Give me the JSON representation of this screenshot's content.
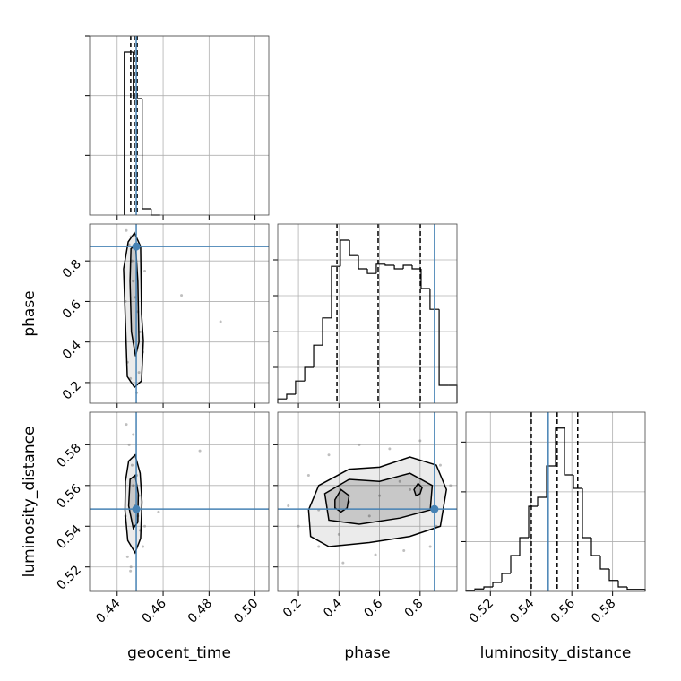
{
  "chart_data": [
    {
      "type": "histogram",
      "bins": [
        0.4431,
        0.447,
        0.4509,
        0.4548,
        0.4587
      ],
      "counts": [
        2730,
        1950,
        105,
        0
      ],
      "color": "#000000",
      "quantiles": [
        0.4459,
        0.4475,
        0.4487
      ],
      "truth": 0.4483,
      "truth_color": "#4682b4",
      "xlim": [
        0.428,
        0.506
      ],
      "xticks": [
        0.44,
        0.46,
        0.48,
        {
          "value": 0.5,
          "label": "0.50"
        }
      ],
      "xtick_labels": false,
      "ylim": [
        0,
        3000
      ],
      "yticks": [
        1000,
        2000,
        3000
      ],
      "ytick_labels": false,
      "grid": true
    },
    {
      "type": "scatter",
      "ylabel": "phase",
      "color": "#000000",
      "point_color": "#808080",
      "x": [
        0.444,
        0.4452,
        0.4465,
        0.447,
        0.4478,
        0.449,
        0.45,
        0.4512,
        0.4445,
        0.4458,
        0.4485,
        0.4495,
        0.4436,
        0.452,
        0.468,
        0.485,
        0.447,
        0.446
      ],
      "y": [
        0.95,
        0.88,
        0.8,
        0.7,
        0.62,
        0.55,
        0.45,
        0.35,
        0.3,
        0.22,
        0.15,
        0.25,
        0.6,
        0.75,
        0.63,
        0.5,
        0.4,
        0.92
      ],
      "contours": [
        {
          "x": [
            0.4448,
            0.4475,
            0.4502,
            0.4506,
            0.4514,
            0.4506,
            0.4475,
            0.4444,
            0.4436,
            0.4428
          ],
          "y": [
            0.894,
            0.938,
            0.872,
            0.54,
            0.407,
            0.208,
            0.177,
            0.23,
            0.496,
            0.761
          ]
        },
        {
          "x": [
            0.446,
            0.448,
            0.449,
            0.4495,
            0.448,
            0.4462,
            0.4456
          ],
          "y": [
            0.86,
            0.88,
            0.7,
            0.4,
            0.33,
            0.45,
            0.7
          ]
        }
      ],
      "truth": [
        0.4483,
        0.871
      ],
      "truth_color": "#4682b4",
      "xlim": [
        0.428,
        0.506
      ],
      "xticks": [
        0.44,
        0.46,
        0.48,
        {
          "value": 0.5,
          "label": "0.50"
        }
      ],
      "xtick_labels": false,
      "ylim": [
        0.098,
        0.982
      ],
      "yticks": [
        0.2,
        0.4,
        0.6,
        0.8
      ],
      "ytick_labels": true,
      "grid": true
    },
    {
      "type": "histogram",
      "bins": [
        0.098,
        0.142,
        0.186,
        0.231,
        0.275,
        0.319,
        0.363,
        0.407,
        0.452,
        0.496,
        0.54,
        0.584,
        0.628,
        0.673,
        0.717,
        0.761,
        0.805,
        0.849,
        0.894,
        0.938,
        0.982
      ],
      "counts": [
        12,
        25,
        62,
        100,
        162,
        238,
        382,
        455,
        412,
        375,
        362,
        388,
        385,
        375,
        385,
        375,
        320,
        262,
        50,
        50
      ],
      "color": "#000000",
      "quantiles": [
        0.39,
        0.593,
        0.801
      ],
      "truth": 0.871,
      "truth_color": "#4682b4",
      "xlim": [
        0.098,
        0.982
      ],
      "xticks": [
        0.2,
        0.4,
        0.6,
        0.8
      ],
      "xtick_labels": false,
      "ylim": [
        0,
        500
      ],
      "yticks": [
        100,
        200,
        300,
        400
      ],
      "ytick_labels": false,
      "grid": true
    },
    {
      "type": "scatter",
      "xlabel": "geocent_time",
      "ylabel": "luminosity_distance",
      "color": "#000000",
      "point_color": "#808080",
      "x": [
        0.444,
        0.4452,
        0.4465,
        0.447,
        0.4478,
        0.449,
        0.45,
        0.4512,
        0.4445,
        0.4458,
        0.4485,
        0.4495,
        0.4436,
        0.452,
        0.458,
        0.476,
        0.447,
        0.446
      ],
      "y": [
        0.59,
        0.58,
        0.57,
        0.56,
        0.55,
        0.545,
        0.538,
        0.53,
        0.525,
        0.518,
        0.565,
        0.555,
        0.545,
        0.54,
        0.547,
        0.577,
        0.585,
        0.52
      ],
      "contours": [
        {
          "x": [
            0.445,
            0.4478,
            0.45,
            0.4508,
            0.4502,
            0.4478,
            0.4446,
            0.4434,
            0.4436
          ],
          "y": [
            0.572,
            0.575,
            0.566,
            0.552,
            0.534,
            0.527,
            0.533,
            0.548,
            0.562
          ]
        },
        {
          "x": [
            0.4456,
            0.4478,
            0.4492,
            0.449,
            0.447,
            0.445
          ],
          "y": [
            0.563,
            0.565,
            0.556,
            0.542,
            0.539,
            0.55
          ]
        }
      ],
      "truth": [
        0.4483,
        0.5484
      ],
      "truth_color": "#4682b4",
      "xlim": [
        0.428,
        0.506
      ],
      "xticks": [
        0.44,
        0.46,
        0.48,
        {
          "value": 0.5,
          "label": "0.50"
        }
      ],
      "xtick_labels": true,
      "ylim": [
        0.508,
        0.596
      ],
      "yticks": [
        0.52,
        0.54,
        0.56,
        0.58
      ],
      "ytick_labels": true,
      "grid": true
    },
    {
      "type": "scatter",
      "xlabel": "phase",
      "color": "#000000",
      "point_color": "#808080",
      "x": [
        0.15,
        0.2,
        0.25,
        0.3,
        0.35,
        0.42,
        0.5,
        0.58,
        0.65,
        0.72,
        0.8,
        0.88,
        0.95,
        0.3,
        0.45,
        0.6,
        0.75,
        0.9,
        0.55,
        0.4,
        0.7,
        0.85
      ],
      "y": [
        0.55,
        0.54,
        0.565,
        0.53,
        0.575,
        0.522,
        0.58,
        0.526,
        0.578,
        0.528,
        0.582,
        0.54,
        0.56,
        0.548,
        0.552,
        0.555,
        0.558,
        0.57,
        0.545,
        0.536,
        0.562,
        0.53
      ],
      "contours": [
        {
          "x": [
            0.25,
            0.3,
            0.45,
            0.6,
            0.75,
            0.88,
            0.93,
            0.9,
            0.75,
            0.55,
            0.35,
            0.26
          ],
          "y": [
            0.548,
            0.56,
            0.568,
            0.569,
            0.574,
            0.57,
            0.558,
            0.54,
            0.535,
            0.532,
            0.53,
            0.535
          ]
        },
        {
          "x": [
            0.33,
            0.45,
            0.6,
            0.75,
            0.86,
            0.85,
            0.7,
            0.5,
            0.35
          ],
          "y": [
            0.556,
            0.563,
            0.562,
            0.566,
            0.56,
            0.548,
            0.544,
            0.541,
            0.543
          ]
        },
        {
          "x": [
            0.38,
            0.41,
            0.45,
            0.44,
            0.41,
            0.38
          ],
          "y": [
            0.553,
            0.558,
            0.555,
            0.549,
            0.547,
            0.549
          ]
        },
        {
          "x": [
            0.77,
            0.79,
            0.81,
            0.8,
            0.78
          ],
          "y": [
            0.558,
            0.561,
            0.559,
            0.556,
            0.555
          ]
        }
      ],
      "truth": [
        0.871,
        0.5484
      ],
      "truth_color": "#4682b4",
      "xlim": [
        0.098,
        0.982
      ],
      "xticks": [
        0.2,
        0.4,
        0.6,
        0.8
      ],
      "xtick_labels": true,
      "ylim": [
        0.508,
        0.596
      ],
      "yticks": [
        0.52,
        0.54,
        0.56,
        0.58
      ],
      "ytick_labels": false,
      "grid": true
    },
    {
      "type": "histogram",
      "xlabel": "luminosity_distance",
      "bins": [
        0.508,
        0.5124,
        0.5168,
        0.5212,
        0.5256,
        0.53,
        0.5344,
        0.5388,
        0.5432,
        0.5476,
        0.552,
        0.5564,
        0.5608,
        0.5652,
        0.5696,
        0.574,
        0.5784,
        0.5828,
        0.5872,
        0.5916,
        0.596
      ],
      "counts": [
        2,
        5,
        9,
        18,
        36,
        72,
        108,
        171,
        189,
        252,
        328,
        234,
        207,
        108,
        72,
        45,
        22,
        9,
        4,
        4
      ],
      "color": "#000000",
      "quantiles": [
        0.5401,
        0.5528,
        0.5629
      ],
      "truth": 0.5484,
      "truth_color": "#4682b4",
      "xlim": [
        0.508,
        0.596
      ],
      "xticks": [
        0.52,
        0.54,
        0.56,
        0.58
      ],
      "xtick_labels": true,
      "ylim": [
        0,
        360
      ],
      "yticks": [
        100,
        200,
        300
      ],
      "ytick_labels": false,
      "grid": true
    }
  ]
}
